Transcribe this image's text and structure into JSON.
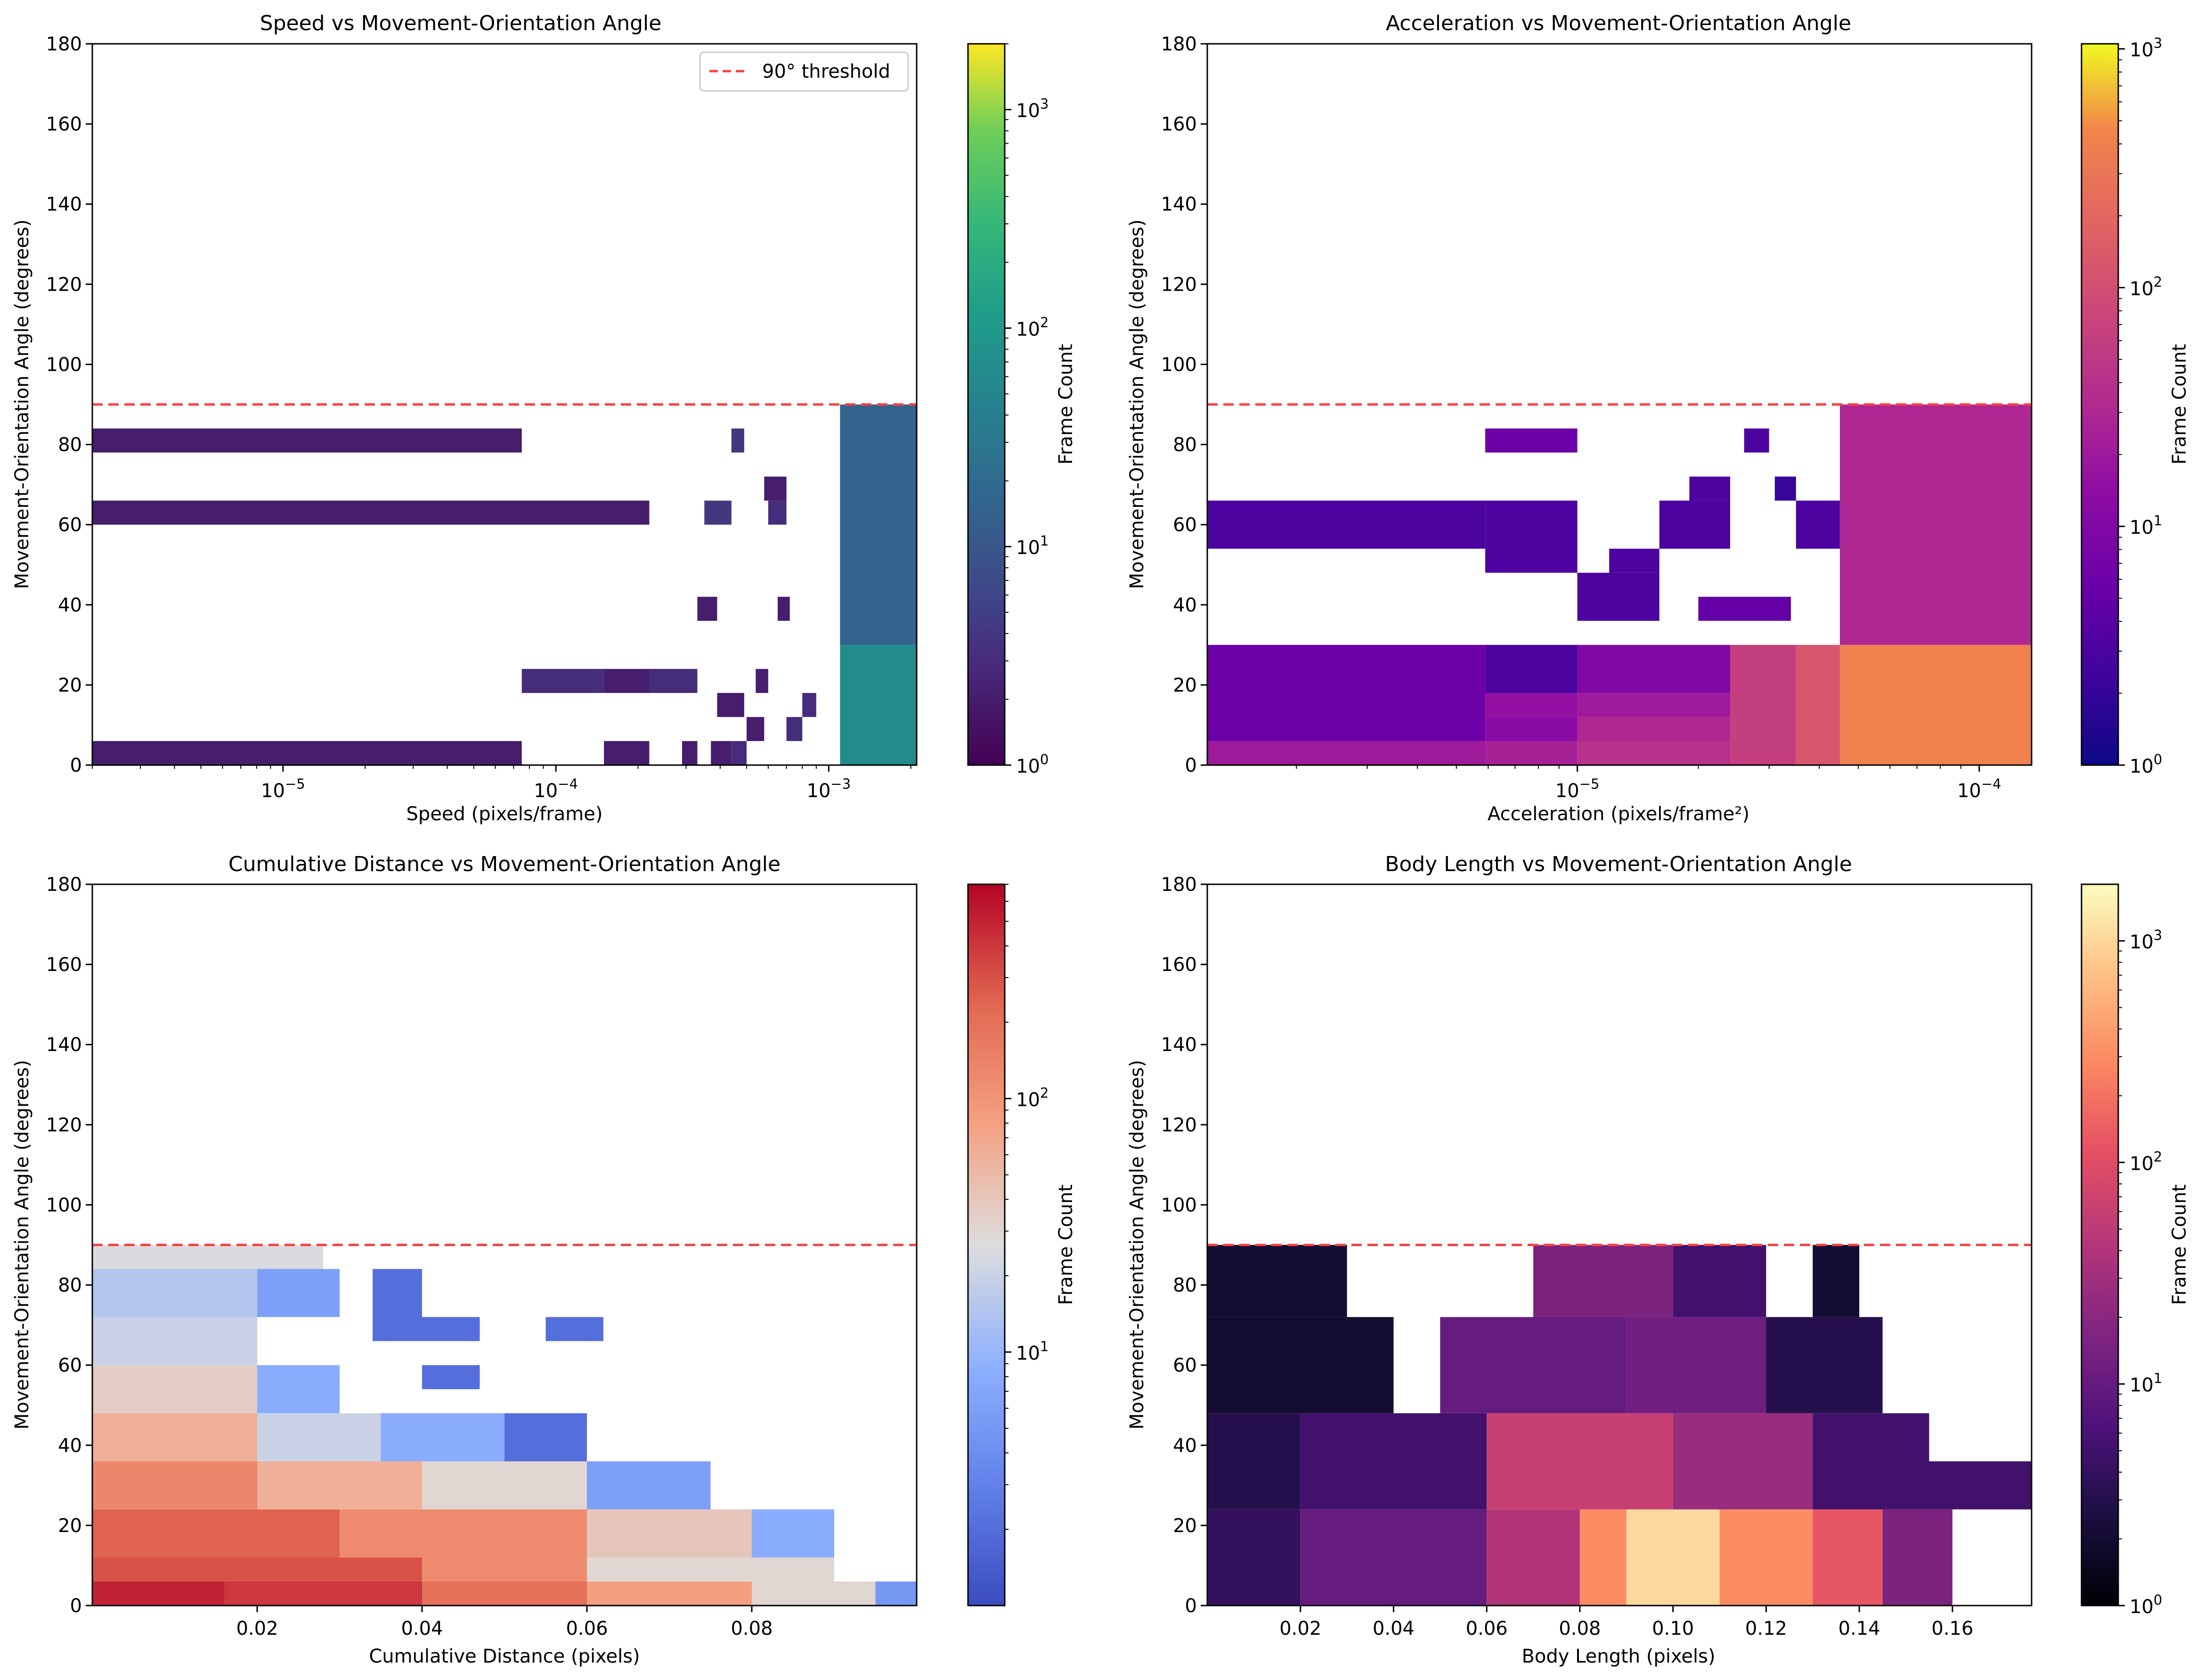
{
  "figure": {
    "shared_y_axis": {
      "label": "Movement-Orientation Angle (degrees)",
      "range": [
        0,
        180
      ],
      "ticks": [
        0,
        20,
        40,
        60,
        80,
        100,
        120,
        140,
        160,
        180
      ]
    },
    "threshold": {
      "value": 90,
      "color": "#ff4040",
      "label": "90° threshold"
    },
    "colorbar_label": "Frame Count"
  },
  "chart_data": [
    {
      "type": "heatmap",
      "title": "Speed vs Movement-Orientation Angle",
      "xlabel": "Speed (pixels/frame)",
      "ylabel": "Movement-Orientation Angle (degrees)",
      "xscale": "log",
      "xlim": [
        2e-06,
        0.0021
      ],
      "xticks": [
        {
          "value": 1e-05,
          "label": "10",
          "exp": "−5"
        },
        {
          "value": 0.0001,
          "label": "10",
          "exp": "−4"
        },
        {
          "value": 0.001,
          "label": "10",
          "exp": "−3"
        }
      ],
      "ylim": [
        0,
        180
      ],
      "colormap": "viridis",
      "colorbar": {
        "label": "Frame Count",
        "scale": "log",
        "range": [
          1,
          2000
        ],
        "ticks": [
          {
            "value": 1,
            "label": "10",
            "exp": "0"
          },
          {
            "value": 10,
            "label": "10",
            "exp": "1"
          },
          {
            "value": 100,
            "label": "10",
            "exp": "2"
          },
          {
            "value": 1000,
            "label": "10",
            "exp": "3"
          }
        ]
      },
      "threshold_line": 90,
      "legend": {
        "entry": "90° threshold",
        "position": "top-right"
      },
      "cells": [
        {
          "x0": 2e-06,
          "x1": 7.5e-05,
          "y0": 0,
          "y1": 6,
          "count": 2
        },
        {
          "x0": 2e-06,
          "x1": 7.5e-05,
          "y0": 78,
          "y1": 84,
          "count": 2
        },
        {
          "x0": 2e-06,
          "x1": 0.00022,
          "y0": 60,
          "y1": 66,
          "count": 2
        },
        {
          "x0": 7.5e-05,
          "x1": 0.00015,
          "y0": 18,
          "y1": 24,
          "count": 3
        },
        {
          "x0": 0.00015,
          "x1": 0.00022,
          "y0": 18,
          "y1": 24,
          "count": 2
        },
        {
          "x0": 0.00022,
          "x1": 0.00033,
          "y0": 18,
          "y1": 24,
          "count": 3
        },
        {
          "x0": 0.00015,
          "x1": 0.00022,
          "y0": 0,
          "y1": 6,
          "count": 2
        },
        {
          "x0": 0.00029,
          "x1": 0.00033,
          "y0": 0,
          "y1": 6,
          "count": 2
        },
        {
          "x0": 0.00033,
          "x1": 0.00039,
          "y0": 36,
          "y1": 42,
          "count": 2
        },
        {
          "x0": 0.00035,
          "x1": 0.00044,
          "y0": 60,
          "y1": 66,
          "count": 4
        },
        {
          "x0": 0.00044,
          "x1": 0.00049,
          "y0": 78,
          "y1": 84,
          "count": 4
        },
        {
          "x0": 0.00039,
          "x1": 0.00049,
          "y0": 12,
          "y1": 18,
          "count": 2
        },
        {
          "x0": 0.00037,
          "x1": 0.00044,
          "y0": 0,
          "y1": 6,
          "count": 2
        },
        {
          "x0": 0.00044,
          "x1": 0.0005,
          "y0": 0,
          "y1": 6,
          "count": 3
        },
        {
          "x0": 0.0005,
          "x1": 0.00058,
          "y0": 6,
          "y1": 12,
          "count": 2
        },
        {
          "x0": 0.00054,
          "x1": 0.0006,
          "y0": 18,
          "y1": 24,
          "count": 2
        },
        {
          "x0": 0.0006,
          "x1": 0.0007,
          "y0": 60,
          "y1": 66,
          "count": 3
        },
        {
          "x0": 0.00058,
          "x1": 0.0007,
          "y0": 66,
          "y1": 72,
          "count": 2
        },
        {
          "x0": 0.00065,
          "x1": 0.00072,
          "y0": 36,
          "y1": 42,
          "count": 2
        },
        {
          "x0": 0.0007,
          "x1": 0.0008,
          "y0": 6,
          "y1": 12,
          "count": 3
        },
        {
          "x0": 0.0008,
          "x1": 0.0009,
          "y0": 12,
          "y1": 18,
          "count": 3
        },
        {
          "x0": 0.0011,
          "x1": 0.0021,
          "y0": 0,
          "y1": 30,
          "count": 60
        },
        {
          "x0": 0.0011,
          "x1": 0.0021,
          "y0": 30,
          "y1": 90,
          "count": 15
        }
      ]
    },
    {
      "type": "heatmap",
      "title": "Acceleration vs Movement-Orientation Angle",
      "xlabel": "Acceleration (pixels/frame²)",
      "ylabel": "Movement-Orientation Angle (degrees)",
      "xscale": "log",
      "xlim": [
        1.2e-06,
        0.000135
      ],
      "xticks": [
        {
          "value": 1e-05,
          "label": "10",
          "exp": "−5"
        },
        {
          "value": 0.0001,
          "label": "10",
          "exp": "−4"
        }
      ],
      "ylim": [
        0,
        180
      ],
      "colormap": "plasma",
      "colorbar": {
        "label": "Frame Count",
        "scale": "log",
        "range": [
          1,
          1050
        ],
        "ticks": [
          {
            "value": 1,
            "label": "10",
            "exp": "0"
          },
          {
            "value": 10,
            "label": "10",
            "exp": "1"
          },
          {
            "value": 100,
            "label": "10",
            "exp": "2"
          },
          {
            "value": 1000,
            "label": "10",
            "exp": "3"
          }
        ]
      },
      "threshold_line": 90,
      "cells": [
        {
          "x0": 1.2e-06,
          "x1": 5.9e-06,
          "y0": 0,
          "y1": 6,
          "count": 20
        },
        {
          "x0": 1.2e-06,
          "x1": 5.9e-06,
          "y0": 6,
          "y1": 30,
          "count": 6
        },
        {
          "x0": 1.2e-06,
          "x1": 5.9e-06,
          "y0": 54,
          "y1": 66,
          "count": 3
        },
        {
          "x0": 5.9e-06,
          "x1": 1e-05,
          "y0": 0,
          "y1": 6,
          "count": 25
        },
        {
          "x0": 5.9e-06,
          "x1": 1e-05,
          "y0": 6,
          "y1": 12,
          "count": 12
        },
        {
          "x0": 5.9e-06,
          "x1": 1e-05,
          "y0": 12,
          "y1": 18,
          "count": 15
        },
        {
          "x0": 5.9e-06,
          "x1": 1e-05,
          "y0": 18,
          "y1": 30,
          "count": 3
        },
        {
          "x0": 5.9e-06,
          "x1": 1e-05,
          "y0": 48,
          "y1": 66,
          "count": 3
        },
        {
          "x0": 5.9e-06,
          "x1": 1e-05,
          "y0": 78,
          "y1": 84,
          "count": 6
        },
        {
          "x0": 1e-05,
          "x1": 1.6e-05,
          "y0": 36,
          "y1": 48,
          "count": 3
        },
        {
          "x0": 1.2e-05,
          "x1": 1.6e-05,
          "y0": 48,
          "y1": 54,
          "count": 3
        },
        {
          "x0": 1e-05,
          "x1": 2.4e-05,
          "y0": 0,
          "y1": 6,
          "count": 40
        },
        {
          "x0": 1e-05,
          "x1": 2.4e-05,
          "y0": 6,
          "y1": 12,
          "count": 30
        },
        {
          "x0": 1e-05,
          "x1": 2.4e-05,
          "y0": 12,
          "y1": 18,
          "count": 20
        },
        {
          "x0": 1e-05,
          "x1": 2.4e-05,
          "y0": 18,
          "y1": 30,
          "count": 10
        },
        {
          "x0": 1.6e-05,
          "x1": 2.4e-05,
          "y0": 54,
          "y1": 66,
          "count": 3
        },
        {
          "x0": 1.9e-05,
          "x1": 2.4e-05,
          "y0": 66,
          "y1": 72,
          "count": 3
        },
        {
          "x0": 2e-05,
          "x1": 3.4e-05,
          "y0": 36,
          "y1": 42,
          "count": 5
        },
        {
          "x0": 2.4e-05,
          "x1": 3.5e-05,
          "y0": 0,
          "y1": 30,
          "count": 60
        },
        {
          "x0": 2.6e-05,
          "x1": 3e-05,
          "y0": 78,
          "y1": 84,
          "count": 3
        },
        {
          "x0": 3.1e-05,
          "x1": 3.5e-05,
          "y0": 66,
          "y1": 72,
          "count": 2
        },
        {
          "x0": 3.5e-05,
          "x1": 4.5e-05,
          "y0": 0,
          "y1": 30,
          "count": 120
        },
        {
          "x0": 3.5e-05,
          "x1": 4.5e-05,
          "y0": 54,
          "y1": 66,
          "count": 3
        },
        {
          "x0": 4.5e-05,
          "x1": 0.000135,
          "y0": 0,
          "y1": 30,
          "count": 400
        },
        {
          "x0": 4.5e-05,
          "x1": 0.000135,
          "y0": 30,
          "y1": 90,
          "count": 30
        }
      ]
    },
    {
      "type": "heatmap",
      "title": "Cumulative Distance vs Movement-Orientation Angle",
      "xlabel": "Cumulative Distance (pixels)",
      "ylabel": "Movement-Orientation Angle (degrees)",
      "xscale": "linear",
      "xlim": [
        0,
        0.1
      ],
      "xticks": [
        {
          "value": 0.02,
          "label": "0.02"
        },
        {
          "value": 0.04,
          "label": "0.04"
        },
        {
          "value": 0.06,
          "label": "0.06"
        },
        {
          "value": 0.08,
          "label": "0.08"
        }
      ],
      "ylim": [
        0,
        180
      ],
      "colormap": "coolwarm",
      "colorbar": {
        "label": "Frame Count",
        "scale": "log",
        "range": [
          1,
          700
        ],
        "ticks": [
          {
            "value": 10,
            "label": "10",
            "exp": "1"
          },
          {
            "value": 100,
            "label": "10",
            "exp": "2"
          }
        ]
      },
      "threshold_line": 90,
      "cells": [
        {
          "x0": 0.0,
          "x1": 0.016,
          "y0": 0,
          "y1": 6,
          "count": 500
        },
        {
          "x0": 0.016,
          "x1": 0.04,
          "y0": 0,
          "y1": 6,
          "count": 400
        },
        {
          "x0": 0.04,
          "x1": 0.06,
          "y0": 0,
          "y1": 6,
          "count": 200
        },
        {
          "x0": 0.06,
          "x1": 0.08,
          "y0": 0,
          "y1": 6,
          "count": 80
        },
        {
          "x0": 0.08,
          "x1": 0.095,
          "y0": 0,
          "y1": 6,
          "count": 30
        },
        {
          "x0": 0.095,
          "x1": 0.1,
          "y0": 0,
          "y1": 6,
          "count": 5
        },
        {
          "x0": 0.0,
          "x1": 0.04,
          "y0": 6,
          "y1": 12,
          "count": 300
        },
        {
          "x0": 0.04,
          "x1": 0.06,
          "y0": 6,
          "y1": 12,
          "count": 120
        },
        {
          "x0": 0.06,
          "x1": 0.09,
          "y0": 6,
          "y1": 12,
          "count": 30
        },
        {
          "x0": 0.0,
          "x1": 0.03,
          "y0": 12,
          "y1": 24,
          "count": 250
        },
        {
          "x0": 0.03,
          "x1": 0.06,
          "y0": 12,
          "y1": 24,
          "count": 120
        },
        {
          "x0": 0.06,
          "x1": 0.08,
          "y0": 12,
          "y1": 24,
          "count": 40
        },
        {
          "x0": 0.08,
          "x1": 0.09,
          "y0": 12,
          "y1": 24,
          "count": 8
        },
        {
          "x0": 0.0,
          "x1": 0.02,
          "y0": 24,
          "y1": 36,
          "count": 130
        },
        {
          "x0": 0.02,
          "x1": 0.04,
          "y0": 24,
          "y1": 36,
          "count": 60
        },
        {
          "x0": 0.04,
          "x1": 0.06,
          "y0": 24,
          "y1": 36,
          "count": 30
        },
        {
          "x0": 0.06,
          "x1": 0.075,
          "y0": 24,
          "y1": 36,
          "count": 6
        },
        {
          "x0": 0.0,
          "x1": 0.02,
          "y0": 36,
          "y1": 48,
          "count": 60
        },
        {
          "x0": 0.02,
          "x1": 0.035,
          "y0": 36,
          "y1": 48,
          "count": 20
        },
        {
          "x0": 0.035,
          "x1": 0.05,
          "y0": 36,
          "y1": 48,
          "count": 8
        },
        {
          "x0": 0.05,
          "x1": 0.06,
          "y0": 36,
          "y1": 48,
          "count": 2
        },
        {
          "x0": 0.0,
          "x1": 0.02,
          "y0": 48,
          "y1": 60,
          "count": 35
        },
        {
          "x0": 0.02,
          "x1": 0.03,
          "y0": 48,
          "y1": 60,
          "count": 8
        },
        {
          "x0": 0.0,
          "x1": 0.02,
          "y0": 60,
          "y1": 72,
          "count": 20
        },
        {
          "x0": 0.0,
          "x1": 0.02,
          "y0": 72,
          "y1": 84,
          "count": 15
        },
        {
          "x0": 0.02,
          "x1": 0.03,
          "y0": 72,
          "y1": 84,
          "count": 6
        },
        {
          "x0": 0.0,
          "x1": 0.028,
          "y0": 84,
          "y1": 90,
          "count": 25
        },
        {
          "x0": 0.034,
          "x1": 0.04,
          "y0": 66,
          "y1": 84,
          "count": 2
        },
        {
          "x0": 0.04,
          "x1": 0.047,
          "y0": 66,
          "y1": 72,
          "count": 2
        },
        {
          "x0": 0.055,
          "x1": 0.062,
          "y0": 66,
          "y1": 72,
          "count": 2
        },
        {
          "x0": 0.04,
          "x1": 0.047,
          "y0": 54,
          "y1": 60,
          "count": 2
        }
      ]
    },
    {
      "type": "heatmap",
      "title": "Body Length vs Movement-Orientation Angle",
      "xlabel": "Body Length (pixels)",
      "ylabel": "Movement-Orientation Angle (degrees)",
      "xscale": "linear",
      "xlim": [
        0,
        0.177
      ],
      "xticks": [
        {
          "value": 0.02,
          "label": "0.02"
        },
        {
          "value": 0.04,
          "label": "0.04"
        },
        {
          "value": 0.06,
          "label": "0.06"
        },
        {
          "value": 0.08,
          "label": "0.08"
        },
        {
          "value": 0.1,
          "label": "0.10"
        },
        {
          "value": 0.12,
          "label": "0.12"
        },
        {
          "value": 0.14,
          "label": "0.14"
        },
        {
          "value": 0.16,
          "label": "0.16"
        }
      ],
      "ylim": [
        0,
        180
      ],
      "colormap": "magma",
      "colorbar": {
        "label": "Frame Count",
        "scale": "log",
        "range": [
          1,
          1800
        ],
        "ticks": [
          {
            "value": 1,
            "label": "10",
            "exp": "0"
          },
          {
            "value": 10,
            "label": "10",
            "exp": "1"
          },
          {
            "value": 100,
            "label": "10",
            "exp": "2"
          },
          {
            "value": 1000,
            "label": "10",
            "exp": "3"
          }
        ]
      },
      "threshold_line": 90,
      "cells": [
        {
          "x0": 0.0,
          "x1": 0.02,
          "y0": 0,
          "y1": 24,
          "count": 4
        },
        {
          "x0": 0.02,
          "x1": 0.06,
          "y0": 0,
          "y1": 24,
          "count": 10
        },
        {
          "x0": 0.06,
          "x1": 0.08,
          "y0": 0,
          "y1": 24,
          "count": 40
        },
        {
          "x0": 0.08,
          "x1": 0.09,
          "y0": 0,
          "y1": 24,
          "count": 300
        },
        {
          "x0": 0.09,
          "x1": 0.11,
          "y0": 0,
          "y1": 24,
          "count": 1000
        },
        {
          "x0": 0.11,
          "x1": 0.13,
          "y0": 0,
          "y1": 24,
          "count": 300
        },
        {
          "x0": 0.13,
          "x1": 0.145,
          "y0": 0,
          "y1": 24,
          "count": 120
        },
        {
          "x0": 0.145,
          "x1": 0.16,
          "y0": 0,
          "y1": 24,
          "count": 15
        },
        {
          "x0": 0.0,
          "x1": 0.02,
          "y0": 24,
          "y1": 48,
          "count": 3
        },
        {
          "x0": 0.02,
          "x1": 0.06,
          "y0": 24,
          "y1": 48,
          "count": 5
        },
        {
          "x0": 0.06,
          "x1": 0.1,
          "y0": 24,
          "y1": 48,
          "count": 60
        },
        {
          "x0": 0.1,
          "x1": 0.13,
          "y0": 24,
          "y1": 48,
          "count": 25
        },
        {
          "x0": 0.13,
          "x1": 0.155,
          "y0": 24,
          "y1": 48,
          "count": 5
        },
        {
          "x0": 0.155,
          "x1": 0.177,
          "y0": 24,
          "y1": 36,
          "count": 5
        },
        {
          "x0": 0.0,
          "x1": 0.04,
          "y0": 48,
          "y1": 72,
          "count": 2
        },
        {
          "x0": 0.05,
          "x1": 0.09,
          "y0": 48,
          "y1": 72,
          "count": 10
        },
        {
          "x0": 0.09,
          "x1": 0.12,
          "y0": 48,
          "y1": 72,
          "count": 12
        },
        {
          "x0": 0.12,
          "x1": 0.145,
          "y0": 48,
          "y1": 72,
          "count": 3
        },
        {
          "x0": 0.0,
          "x1": 0.03,
          "y0": 72,
          "y1": 90,
          "count": 2
        },
        {
          "x0": 0.07,
          "x1": 0.1,
          "y0": 72,
          "y1": 90,
          "count": 15
        },
        {
          "x0": 0.1,
          "x1": 0.12,
          "y0": 72,
          "y1": 90,
          "count": 5
        },
        {
          "x0": 0.13,
          "x1": 0.14,
          "y0": 72,
          "y1": 90,
          "count": 2
        }
      ]
    }
  ]
}
